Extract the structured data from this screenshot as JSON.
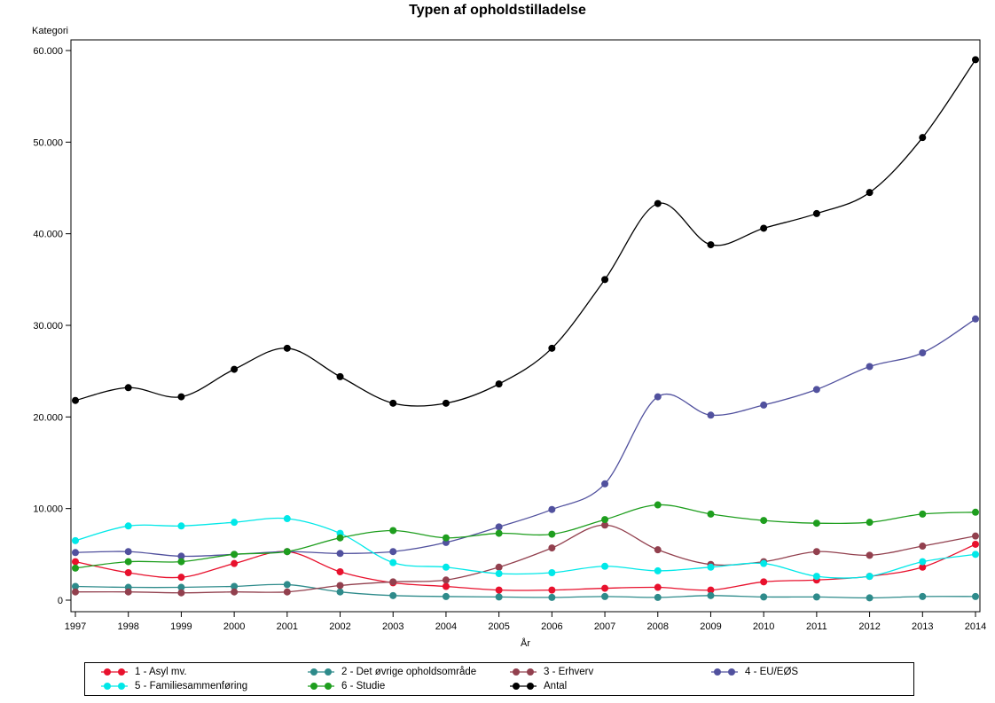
{
  "title": "Typen af opholdstilladelse",
  "y_axis_label": "Kategori",
  "x_axis_label": "År",
  "chart_data": {
    "type": "line",
    "title": "Typen af opholdstilladelse",
    "xlabel": "År",
    "ylabel": "Kategori",
    "ylim": [
      0,
      60000
    ],
    "grid": false,
    "legend_position": "bottom",
    "x": [
      "1997",
      "1998",
      "1999",
      "2000",
      "2001",
      "2002",
      "2003",
      "2004",
      "2005",
      "2006",
      "2007",
      "2008",
      "2009",
      "2010",
      "2011",
      "2012",
      "2013",
      "2014"
    ],
    "y_ticks": {
      "values": [
        0,
        10000,
        20000,
        30000,
        40000,
        50000,
        60000
      ],
      "labels": [
        "0",
        "10.000",
        "20.000",
        "30.000",
        "40.000",
        "50.000",
        "60.000"
      ]
    },
    "series": [
      {
        "name": "1 - Asyl mv.",
        "color": "#e8112d",
        "values": [
          4200,
          3000,
          2500,
          4000,
          5300,
          3100,
          1900,
          1500,
          1100,
          1100,
          1300,
          1400,
          1100,
          2000,
          2200,
          2600,
          3600,
          6100
        ]
      },
      {
        "name": "2 - Det øvrige opholdsområde",
        "color": "#2e8b8b",
        "values": [
          1500,
          1400,
          1400,
          1500,
          1700,
          900,
          500,
          400,
          350,
          300,
          400,
          300,
          500,
          350,
          350,
          250,
          400,
          400
        ]
      },
      {
        "name": "3 - Erhverv",
        "color": "#92404e",
        "values": [
          900,
          900,
          800,
          900,
          900,
          1600,
          2000,
          2200,
          3600,
          5700,
          8200,
          5500,
          3900,
          4200,
          5300,
          4900,
          5900,
          7000
        ]
      },
      {
        "name": "4 - EU/EØS",
        "color": "#51519e",
        "values": [
          5200,
          5300,
          4800,
          5000,
          5300,
          5100,
          5300,
          6300,
          8000,
          9900,
          12700,
          22200,
          20200,
          21300,
          23000,
          25500,
          27000,
          30700
        ]
      },
      {
        "name": "5 - Familiesammenføring",
        "color": "#00e8e8",
        "values": [
          6500,
          8100,
          8100,
          8500,
          8900,
          7300,
          4100,
          3600,
          2900,
          3000,
          3700,
          3200,
          3600,
          4000,
          2600,
          2600,
          4200,
          5000
        ]
      },
      {
        "name": "6 - Studie",
        "color": "#1e9e1e",
        "values": [
          3500,
          4200,
          4200,
          5000,
          5300,
          6800,
          7600,
          6800,
          7300,
          7200,
          8800,
          10400,
          9400,
          8700,
          8400,
          8500,
          9400,
          9600
        ]
      },
      {
        "name": "Antal",
        "color": "#000000",
        "values": [
          21800,
          23200,
          22200,
          25200,
          27500,
          24400,
          21500,
          21500,
          23600,
          27500,
          35000,
          43300,
          38800,
          40600,
          42200,
          44500,
          50500,
          59000
        ]
      }
    ]
  }
}
